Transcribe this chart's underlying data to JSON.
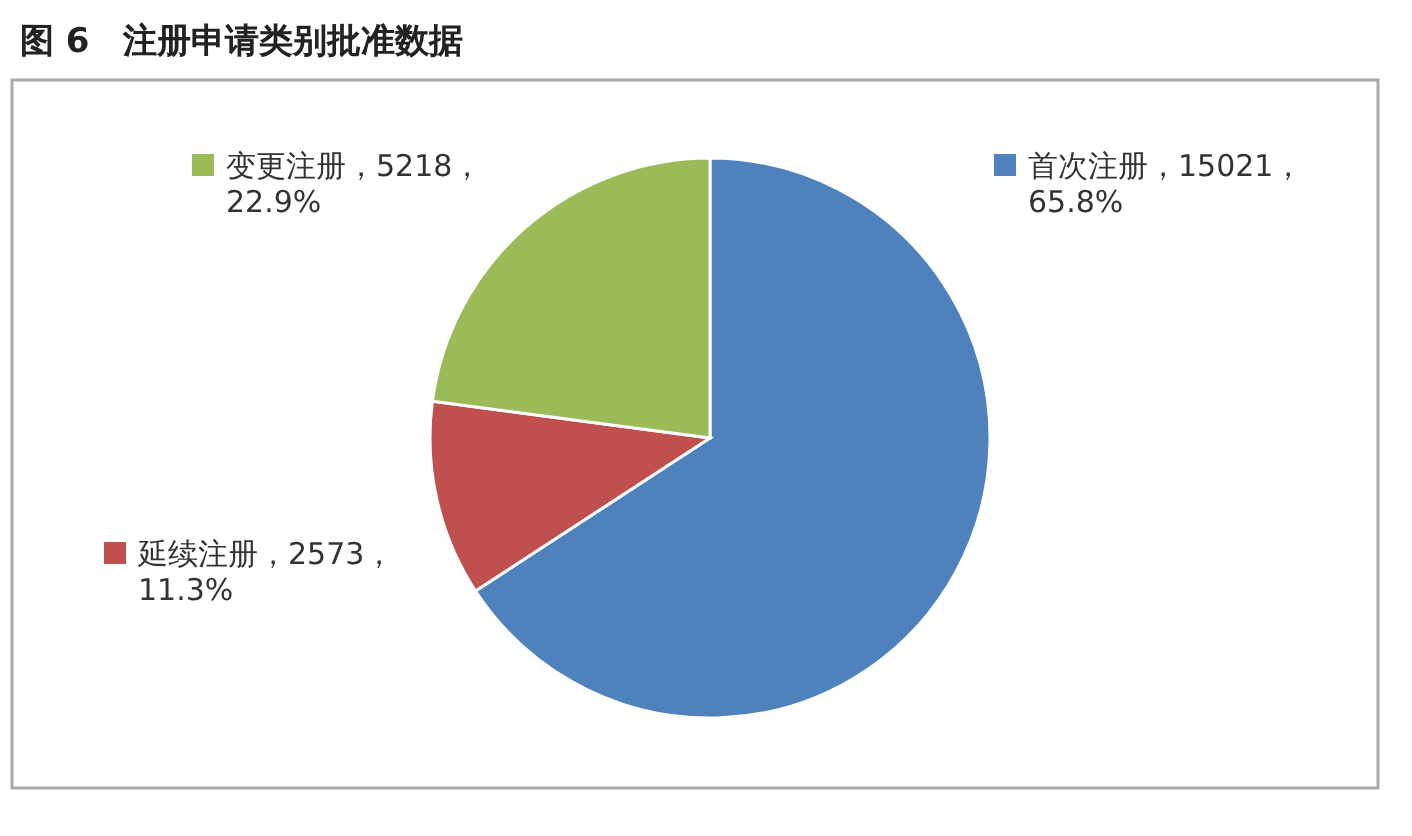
{
  "chart_data": {
    "type": "pie",
    "title": "图 6　注册申请类别批准数据",
    "categories": [
      "首次注册",
      "延续注册",
      "变更注册"
    ],
    "values": [
      65.8,
      11.3,
      22.9
    ],
    "colors": [
      "#4f81bd",
      "#c0504d",
      "#9bbb59"
    ],
    "legend": "top",
    "value_labels": [
      "15021，65.8%",
      "2573，11.3%",
      "5218，22.9%"
    ]
  }
}
